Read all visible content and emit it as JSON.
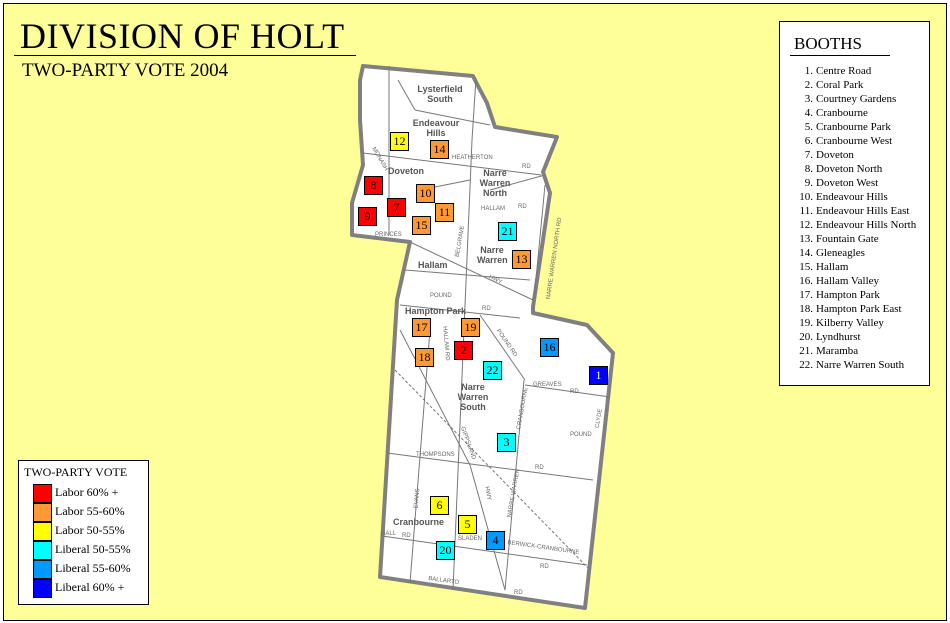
{
  "title": "DIVISION OF HOLT",
  "subtitle": "TWO-PARTY VOTE 2004",
  "booths": {
    "heading": "BOOTHS",
    "items": [
      {
        "number": 1,
        "name": "Centre Road",
        "category": "lib60"
      },
      {
        "number": 2,
        "name": "Coral Park",
        "category": "lab60"
      },
      {
        "number": 3,
        "name": "Courtney Gardens",
        "category": "lib50"
      },
      {
        "number": 4,
        "name": "Cranbourne",
        "category": "lib55"
      },
      {
        "number": 5,
        "name": "Cranbourne Park",
        "category": "lab50"
      },
      {
        "number": 6,
        "name": "Cranbourne West",
        "category": "lab50"
      },
      {
        "number": 7,
        "name": "Doveton",
        "category": "lab60"
      },
      {
        "number": 8,
        "name": "Doveton North",
        "category": "lab60"
      },
      {
        "number": 9,
        "name": "Doveton West",
        "category": "lab60"
      },
      {
        "number": 10,
        "name": "Endeavour Hills",
        "category": "lab55"
      },
      {
        "number": 11,
        "name": "Endeavour Hills East",
        "category": "lab55"
      },
      {
        "number": 12,
        "name": "Endeavour Hills North",
        "category": "lab50"
      },
      {
        "number": 13,
        "name": "Fountain Gate",
        "category": "lab55"
      },
      {
        "number": 14,
        "name": "Gleneagles",
        "category": "lab55"
      },
      {
        "number": 15,
        "name": "Hallam",
        "category": "lab55"
      },
      {
        "number": 16,
        "name": "Hallam Valley",
        "category": "lib55"
      },
      {
        "number": 17,
        "name": "Hampton Park",
        "category": "lab55"
      },
      {
        "number": 18,
        "name": "Hampton Park East",
        "category": "lab55"
      },
      {
        "number": 19,
        "name": "Kilberry Valley",
        "category": "lab55"
      },
      {
        "number": 20,
        "name": "Lyndhurst",
        "category": "lib50"
      },
      {
        "number": 21,
        "name": "Maramba",
        "category": "lib50"
      },
      {
        "number": 22,
        "name": "Narre Warren South",
        "category": "lib50"
      }
    ]
  },
  "legend": {
    "title": "TWO-PARTY VOTE",
    "items": [
      {
        "key": "lab60",
        "label": "Labor 60% +",
        "color": "#ff0000",
        "text_color": "#000000"
      },
      {
        "key": "lab55",
        "label": "Labor 55-60%",
        "color": "#ff9933",
        "text_color": "#000000"
      },
      {
        "key": "lab50",
        "label": "Labor 50-55%",
        "color": "#ffff00",
        "text_color": "#000000"
      },
      {
        "key": "lib50",
        "label": "Liberal 50-55%",
        "color": "#00ffff",
        "text_color": "#000000"
      },
      {
        "key": "lib55",
        "label": "Liberal 55-60%",
        "color": "#0099ff",
        "text_color": "#000000"
      },
      {
        "key": "lib60",
        "label": "Liberal 60% +",
        "color": "#0000ff",
        "text_color": "#ffffff"
      }
    ]
  },
  "map": {
    "background_color": "#ffff99",
    "boundary_color": "#808080",
    "places": [
      "Lysterfield South",
      "Endeavour Hills",
      "Narre Warren North",
      "Doveton",
      "Hallam",
      "Narre Warren",
      "Hampton Park",
      "Narre Warren South",
      "Cranbourne"
    ],
    "roads": [
      "HEATHERTON",
      "RD",
      "MONASH",
      "HALLAM",
      "RD",
      "BELGRAVE",
      "NARRE WARREN NORTH RD",
      "PRINCES",
      "HWY",
      "POUND",
      "RD",
      "POUND RD",
      "HALLAM RD",
      "GREAVES",
      "RD",
      "CLYDE",
      "POUND",
      "CRANBOURNE",
      "THOMPSONS",
      "RD",
      "GIPPSLAND",
      "HWY",
      "NARRE WARREN",
      "EVANS",
      "HALL",
      "RD",
      "SLADEN",
      "BERWICK-CRANBOURNE",
      "RD",
      "BALLARTO",
      "RD"
    ]
  }
}
